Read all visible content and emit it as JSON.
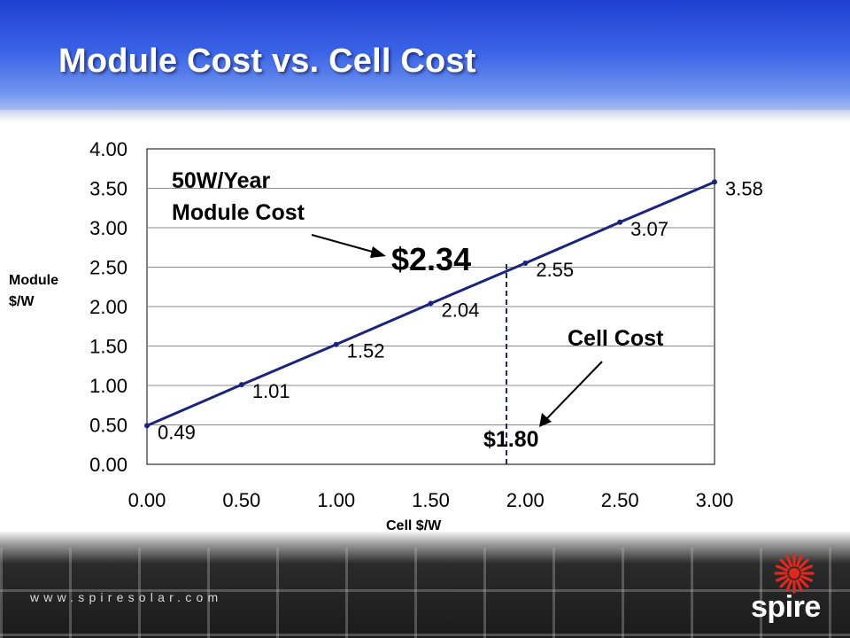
{
  "slide": {
    "title": "Module Cost vs. Cell Cost"
  },
  "chart_data": {
    "type": "line",
    "xlabel": "Cell $/W",
    "ylabel_line1": "Module",
    "ylabel_line2": "$/W",
    "xlim": [
      0,
      3
    ],
    "ylim": [
      0,
      4
    ],
    "x_ticks": [
      "0.00",
      "0.50",
      "1.00",
      "1.50",
      "2.00",
      "2.50",
      "3.00"
    ],
    "y_ticks": [
      "0.00",
      "0.50",
      "1.00",
      "1.50",
      "2.00",
      "2.50",
      "3.00",
      "3.50",
      "4.00"
    ],
    "grid": "horizontal",
    "x": [
      0,
      0.5,
      1.0,
      1.5,
      2.0,
      2.5,
      3.0
    ],
    "values": [
      0.49,
      1.01,
      1.52,
      2.04,
      2.55,
      3.07,
      3.58
    ],
    "data_labels": [
      "0.49",
      "1.01",
      "1.52",
      "2.04",
      "2.55",
      "3.07",
      "3.58"
    ],
    "line_color": "#1a237e",
    "annotations": {
      "module_cost_line1": "50W/Year",
      "module_cost_line2": "Module Cost",
      "module_value": "$2.34",
      "cell_cost_label": "Cell Cost",
      "cell_value": "$1.80",
      "marker_x": 1.9
    }
  },
  "footer": {
    "url": "www.spiresolar.com",
    "logo_text": "spire",
    "logo_color": "#e0281e"
  }
}
